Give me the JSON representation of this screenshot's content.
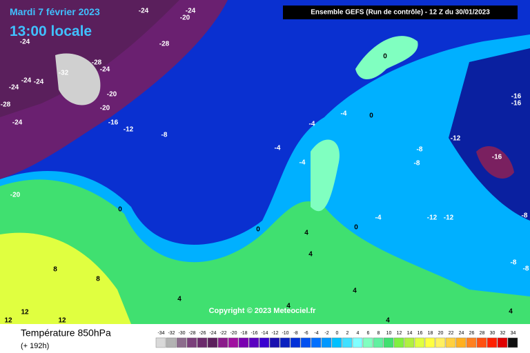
{
  "header": {
    "date": "Mardi 7 février 2023",
    "time": "13:00 locale",
    "run": "Ensemble GEFS  (Run de contrôle)  -  12 Z du 30/01/2023"
  },
  "copyright": "Copyright © 2023 Meteociel.fr",
  "footer": {
    "title": "Température 850hPa",
    "lead": "(+ 192h)"
  },
  "legend": {
    "ticks": [
      -34,
      -32,
      -30,
      -28,
      -26,
      -24,
      -22,
      -20,
      -18,
      -16,
      -14,
      -12,
      -10,
      -8,
      -6,
      -4,
      -2,
      0,
      2,
      4,
      6,
      8,
      10,
      12,
      14,
      16,
      18,
      20,
      22,
      24,
      26,
      28,
      30,
      32,
      34
    ],
    "colors": [
      "#d9d9d9",
      "#b3b3b3",
      "#8c6c8c",
      "#7a3f7a",
      "#6b2a6b",
      "#5c1f5c",
      "#8a1a8a",
      "#a010a0",
      "#7a00b0",
      "#5a00c0",
      "#3a00d0",
      "#1a10b0",
      "#0a20c0",
      "#0030d8",
      "#0050f0",
      "#0070ff",
      "#0098ff",
      "#00c0ff",
      "#40e0ff",
      "#80ffff",
      "#80ffc0",
      "#60f0a0",
      "#40e070",
      "#80f040",
      "#b0f040",
      "#e0ff40",
      "#ffff40",
      "#fff060",
      "#ffd040",
      "#ffb020",
      "#ff8020",
      "#ff5010",
      "#ff2000",
      "#e00000",
      "#101010"
    ]
  },
  "map_labels": [
    -24,
    -24,
    -20,
    -28,
    -24,
    -28,
    -24,
    -32,
    -24,
    -24,
    -24,
    -20,
    -28,
    -20,
    -16,
    -12,
    -24,
    -8,
    -20,
    0,
    -4,
    0,
    -4,
    -4,
    -4,
    -8,
    -12,
    -8,
    -16,
    -16,
    -16,
    -4,
    -12,
    -12,
    -8,
    0,
    0,
    0,
    4,
    4,
    4,
    4,
    4,
    4,
    4,
    -8,
    -8,
    8,
    8,
    12,
    12,
    12
  ]
}
